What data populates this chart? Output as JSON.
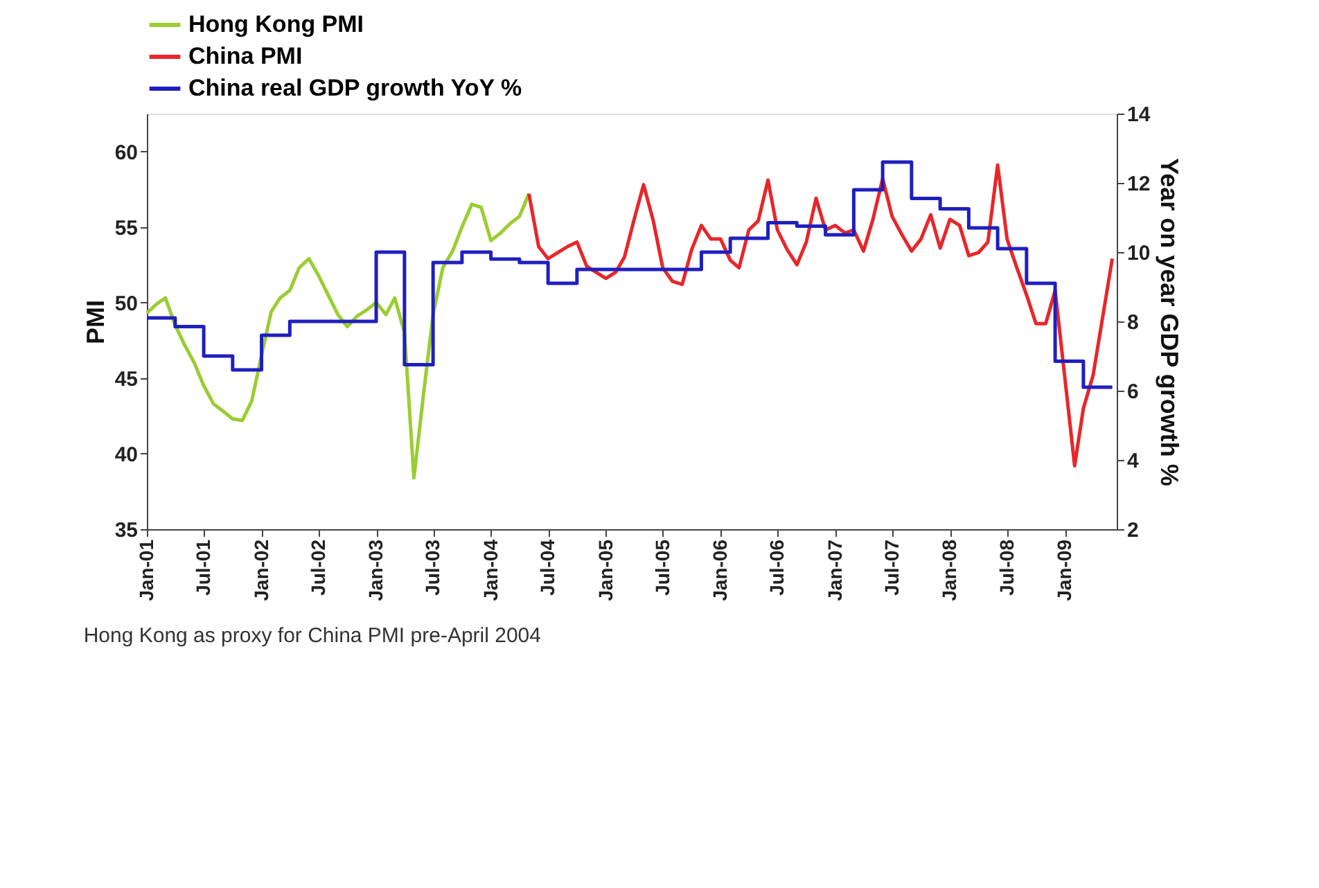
{
  "chart_data": {
    "type": "line",
    "ylabel": "PMI",
    "y2label": "Year on year GDP growth %",
    "xlim": [
      "2001-01",
      "2009-06-15"
    ],
    "xticks": [
      {
        "value": "2001-01",
        "label": "Jan-01"
      },
      {
        "value": "2001-07",
        "label": "Jul-01"
      },
      {
        "value": "2002-01",
        "label": "Jan-02"
      },
      {
        "value": "2002-07",
        "label": "Jul-02"
      },
      {
        "value": "2003-01",
        "label": "Jan-03"
      },
      {
        "value": "2003-07",
        "label": "Jul-03"
      },
      {
        "value": "2004-01",
        "label": "Jan-04"
      },
      {
        "value": "2004-07",
        "label": "Jul-04"
      },
      {
        "value": "2005-01",
        "label": "Jan-05"
      },
      {
        "value": "2005-07",
        "label": "Jul-05"
      },
      {
        "value": "2006-01",
        "label": "Jan-06"
      },
      {
        "value": "2006-07",
        "label": "Jul-06"
      },
      {
        "value": "2007-01",
        "label": "Jan-07"
      },
      {
        "value": "2007-07",
        "label": "Jul-07"
      },
      {
        "value": "2008-01",
        "label": "Jan-08"
      },
      {
        "value": "2008-07",
        "label": "Jul-08"
      },
      {
        "value": "2009-01",
        "label": "Jan-09"
      }
    ],
    "ylim": [
      35,
      62.5
    ],
    "yticks": [
      35,
      40,
      45,
      50,
      55,
      60
    ],
    "y2lim": [
      2,
      14
    ],
    "y2ticks": [
      2,
      4,
      6,
      8,
      10,
      12,
      14
    ],
    "legend": "top",
    "grid": false,
    "annotations": [
      "Hong Kong as proxy for China PMI pre-April 2004"
    ],
    "series": [
      {
        "name": "Hong Kong PMI",
        "color": "#9acd32",
        "x": [
          "2001-01",
          "2001-02",
          "2001-03",
          "2001-04",
          "2001-05",
          "2001-06",
          "2001-07",
          "2001-08",
          "2001-09",
          "2001-10",
          "2001-11",
          "2001-12",
          "2002-01",
          "2002-02",
          "2002-03",
          "2002-04",
          "2002-05",
          "2002-06",
          "2002-07",
          "2002-08",
          "2002-09",
          "2002-10",
          "2002-11",
          "2002-12",
          "2003-01",
          "2003-02",
          "2003-03",
          "2003-04",
          "2003-05",
          "2003-06",
          "2003-07",
          "2003-08",
          "2003-09",
          "2003-10",
          "2003-11",
          "2003-12",
          "2004-01",
          "2004-02",
          "2004-03",
          "2004-04",
          "2004-05"
        ],
        "values": [
          49.3,
          49.9,
          50.3,
          48.5,
          47.2,
          46.0,
          44.5,
          43.3,
          42.8,
          42.3,
          42.2,
          43.5,
          46.5,
          49.4,
          50.3,
          50.8,
          52.3,
          52.9,
          51.8,
          50.5,
          49.2,
          48.4,
          49.1,
          49.5,
          50.0,
          49.2,
          50.3,
          48.0,
          38.4,
          44.0,
          49.2,
          52.3,
          53.4,
          55.0,
          56.5,
          56.3,
          54.1,
          54.6,
          55.2,
          55.7,
          57.2
        ]
      },
      {
        "name": "China PMI",
        "color": "#e8262a",
        "x": [
          "2004-05",
          "2004-06",
          "2004-07",
          "2004-08",
          "2004-09",
          "2004-10",
          "2004-11",
          "2004-12",
          "2005-01",
          "2005-02",
          "2005-03",
          "2005-04",
          "2005-05",
          "2005-06",
          "2005-07",
          "2005-08",
          "2005-09",
          "2005-10",
          "2005-11",
          "2005-12",
          "2006-01",
          "2006-02",
          "2006-03",
          "2006-04",
          "2006-05",
          "2006-06",
          "2006-07",
          "2006-08",
          "2006-09",
          "2006-10",
          "2006-11",
          "2006-12",
          "2007-01",
          "2007-02",
          "2007-03",
          "2007-04",
          "2007-05",
          "2007-06",
          "2007-07",
          "2007-08",
          "2007-09",
          "2007-10",
          "2007-11",
          "2007-12",
          "2008-01",
          "2008-02",
          "2008-03",
          "2008-04",
          "2008-05",
          "2008-06",
          "2008-07",
          "2008-08",
          "2008-09",
          "2008-10",
          "2008-11",
          "2008-12",
          "2009-01",
          "2009-02",
          "2009-03",
          "2009-04",
          "2009-05",
          "2009-06"
        ],
        "values": [
          57.2,
          53.7,
          52.9,
          53.3,
          53.7,
          54.0,
          52.4,
          52.0,
          51.6,
          52.0,
          53.0,
          55.5,
          57.8,
          55.4,
          52.3,
          51.4,
          51.2,
          53.5,
          55.1,
          54.2,
          54.2,
          52.8,
          52.3,
          54.8,
          55.4,
          58.1,
          54.8,
          53.5,
          52.5,
          54.0,
          56.9,
          54.8,
          55.1,
          54.6,
          54.8,
          53.4,
          55.5,
          58.2,
          55.7,
          54.5,
          53.4,
          54.2,
          55.8,
          53.6,
          55.5,
          55.1,
          53.1,
          53.3,
          54.0,
          59.1,
          54.2,
          52.3,
          50.5,
          48.6,
          48.6,
          50.8,
          45.0,
          39.2,
          43.0,
          45.2,
          49.0,
          52.9
        ]
      },
      {
        "name": "China real GDP growth YoY %",
        "color": "#1f1fbf",
        "type": "step",
        "axis": "y2",
        "x": [
          "2001-01",
          "2001-04",
          "2001-07",
          "2001-10",
          "2002-01",
          "2002-04",
          "2003-01",
          "2003-04",
          "2003-07",
          "2003-10",
          "2004-01",
          "2004-04",
          "2004-07",
          "2004-10",
          "2005-11",
          "2006-02",
          "2006-06",
          "2006-09",
          "2006-12",
          "2007-03",
          "2007-06",
          "2007-09",
          "2007-12",
          "2008-03",
          "2008-06",
          "2008-09",
          "2008-12",
          "2009-03",
          "2009-06"
        ],
        "values": [
          8.1,
          7.85,
          7.0,
          6.6,
          7.6,
          8.0,
          10.0,
          6.75,
          9.7,
          10.0,
          9.8,
          9.7,
          9.1,
          9.5,
          10.0,
          10.4,
          10.85,
          10.75,
          10.5,
          11.8,
          12.6,
          11.55,
          11.25,
          10.7,
          10.1,
          9.1,
          6.85,
          6.1,
          6.1
        ]
      }
    ]
  }
}
